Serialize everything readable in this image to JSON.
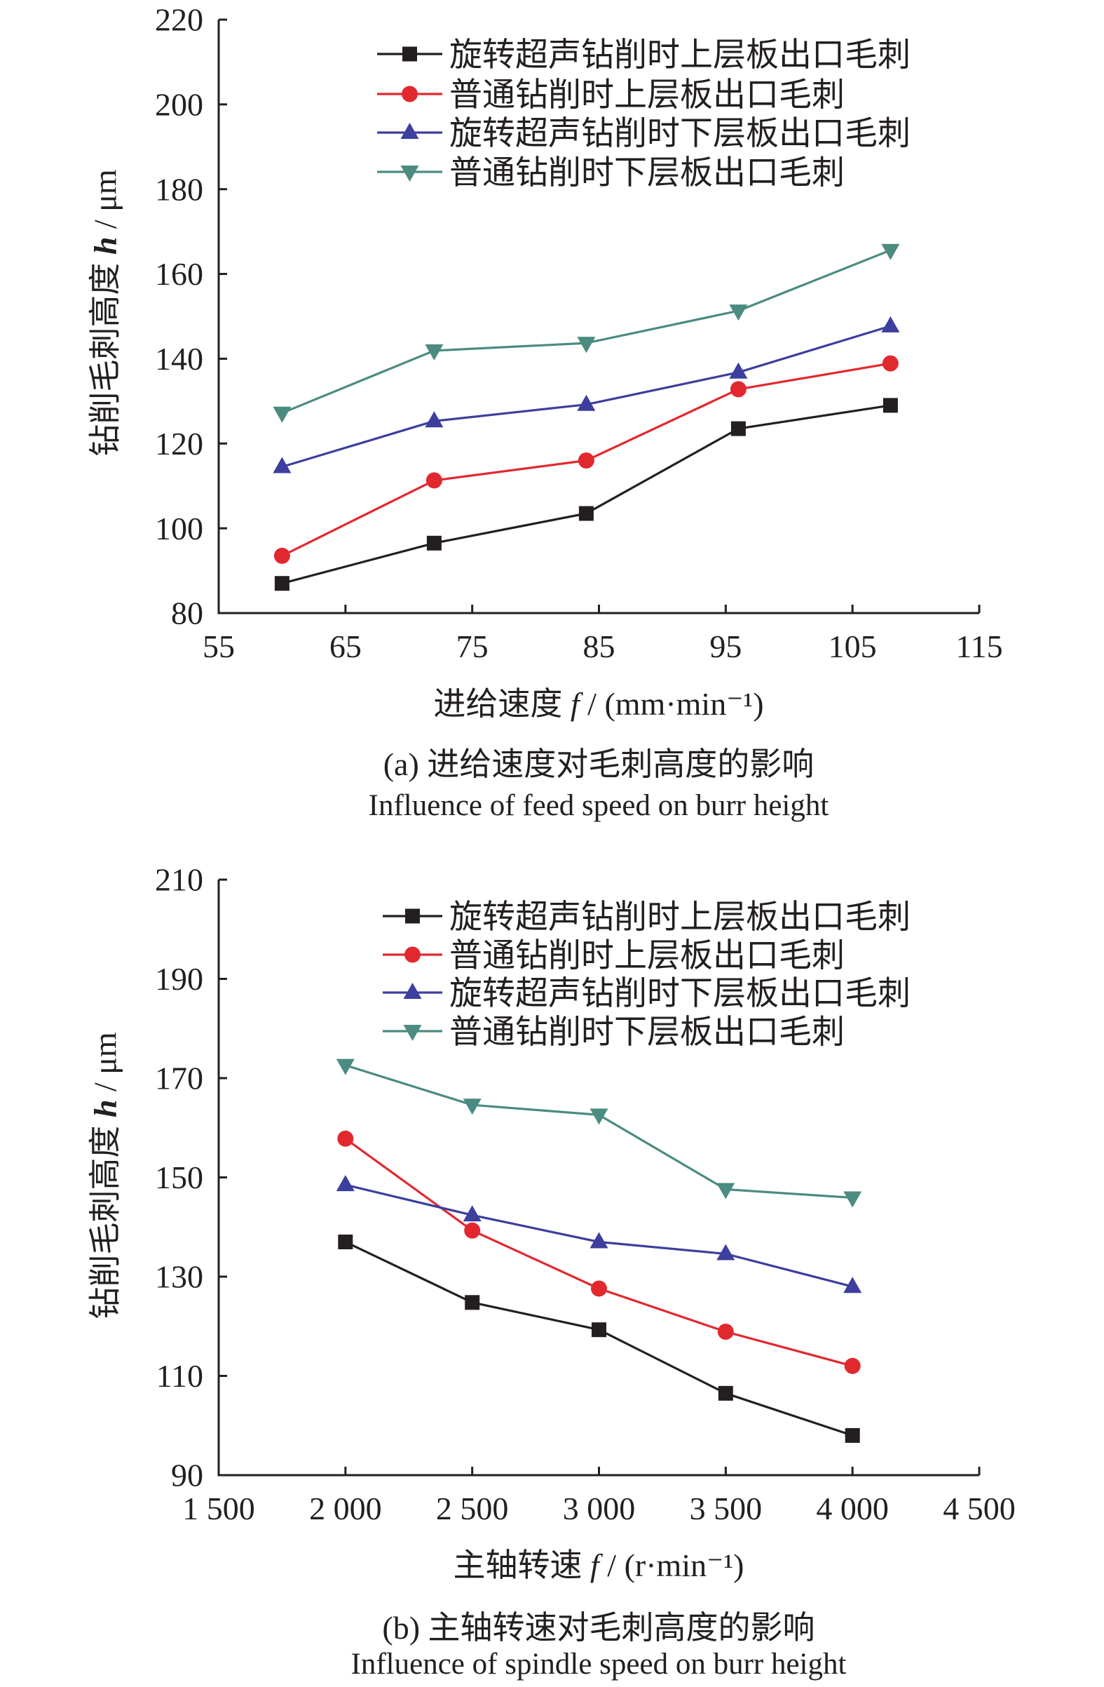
{
  "chart_data": [
    {
      "type": "line",
      "caption": "(a) 进给速度对毛刺高度的影响",
      "caption_en": "Influence of feed speed on burr height",
      "xlabel": "进给速度 f / (mm·min⁻¹)",
      "ylabel": "钻削毛刺高度 h / μm",
      "xlim": [
        55,
        115
      ],
      "ylim": [
        80,
        220
      ],
      "xticks": [
        55,
        65,
        75,
        85,
        95,
        105,
        115
      ],
      "xtick_labels": [
        "55",
        "65",
        "75",
        "85",
        "95",
        "105",
        "115"
      ],
      "yticks": [
        80,
        100,
        120,
        140,
        160,
        180,
        200,
        220
      ],
      "ytick_labels": [
        "80",
        "100",
        "120",
        "140",
        "160",
        "180",
        "200",
        "220"
      ],
      "grid": false,
      "legend": "top-right",
      "x": [
        60,
        72,
        84,
        96,
        108
      ],
      "series": [
        {
          "name": "旋转超声钻削时上层板出口毛刺",
          "marker": "square",
          "color": "#231f20",
          "values": [
            87.0,
            96.5,
            103.5,
            123.5,
            129.0
          ]
        },
        {
          "name": "普通钻削时上层板出口毛刺",
          "marker": "circle",
          "color": "#e2282f",
          "values": [
            93.5,
            111.3,
            116.0,
            132.8,
            138.9
          ]
        },
        {
          "name": "旋转超声钻削时下层板出口毛刺",
          "marker": "triangle-up",
          "color": "#3c3f9d",
          "values": [
            114.5,
            125.3,
            129.2,
            136.8,
            147.7
          ]
        },
        {
          "name": "普通钻削时下层板出口毛刺",
          "marker": "triangle-down",
          "color": "#4b8b82",
          "values": [
            127.2,
            141.9,
            143.7,
            151.3,
            165.6
          ]
        }
      ]
    },
    {
      "type": "line",
      "caption": "(b) 主轴转速对毛刺高度的影响",
      "caption_en": "Influence of spindle speed on burr height",
      "xlabel": "主轴转速 f / (r·min⁻¹)",
      "ylabel": "钻削毛刺高度 h / μm",
      "xlim": [
        1500,
        4500
      ],
      "ylim": [
        90,
        210
      ],
      "xticks": [
        1500,
        2000,
        2500,
        3000,
        3500,
        4000,
        4500
      ],
      "xtick_labels": [
        "1 500",
        "2 000",
        "2 500",
        "3 000",
        "3 500",
        "4 000",
        "4 500"
      ],
      "yticks": [
        90,
        110,
        130,
        150,
        170,
        190,
        210
      ],
      "ytick_labels": [
        "90",
        "110",
        "130",
        "150",
        "170",
        "190",
        "210"
      ],
      "grid": false,
      "legend": "top-right",
      "x": [
        2000,
        2500,
        3000,
        3500,
        4000
      ],
      "series": [
        {
          "name": "旋转超声钻削时上层板出口毛刺",
          "marker": "square",
          "color": "#231f20",
          "values": [
            137.0,
            124.8,
            119.3,
            106.5,
            98.0
          ]
        },
        {
          "name": "普通钻削时上层板出口毛刺",
          "marker": "circle",
          "color": "#e2282f",
          "values": [
            157.8,
            139.3,
            127.6,
            118.9,
            112.0
          ]
        },
        {
          "name": "旋转超声钻削时下层板出口毛刺",
          "marker": "triangle-up",
          "color": "#3c3f9d",
          "values": [
            148.5,
            142.4,
            137.0,
            134.6,
            128.0
          ]
        },
        {
          "name": "普通钻削时下层板出口毛刺",
          "marker": "triangle-down",
          "color": "#4b8b82",
          "values": [
            172.6,
            164.6,
            162.6,
            147.6,
            145.9
          ]
        }
      ]
    }
  ]
}
